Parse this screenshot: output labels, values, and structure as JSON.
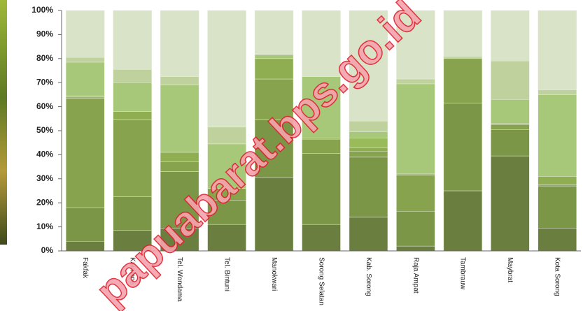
{
  "chart_data": {
    "type": "stacked_bar_100",
    "categories": [
      "Fakfak",
      "Kaimana",
      "Tel. Wondama",
      "Tel. Bintuni",
      "Manokwari",
      "Sorong Selatan",
      "Kab. Sorong",
      "Raja Ampat",
      "Tambrauw",
      "Maybrat",
      "Kota Sorong"
    ],
    "series": [
      {
        "color": "#6a7f3f",
        "values": [
          4,
          8.5,
          9.5,
          11,
          30.5,
          11,
          14,
          2,
          25,
          39.5,
          9.5
        ]
      },
      {
        "color": "#7b9647",
        "values": [
          14,
          14,
          23.5,
          10,
          24,
          29.5,
          25,
          14.5,
          36.5,
          11,
          17.5
        ]
      },
      {
        "color": "#87a34e",
        "values": [
          45.5,
          32,
          4,
          5,
          17,
          6,
          2.5,
          15,
          18.5,
          2,
          0.5
        ]
      },
      {
        "color": "#8fae52",
        "values": [
          0.5,
          3.5,
          4,
          0,
          8.5,
          0.5,
          1.5,
          0.5,
          0,
          0.5,
          3.5
        ]
      },
      {
        "color": "#99bb5a",
        "values": [
          0.5,
          0,
          0,
          0,
          0,
          0,
          4,
          0,
          0,
          0,
          0
        ]
      },
      {
        "color": "#a7c779",
        "values": [
          14,
          12,
          28,
          18.5,
          1.5,
          25.5,
          2.5,
          37.5,
          0.5,
          10,
          34
        ]
      },
      {
        "color": "#bfd29d",
        "values": [
          2,
          5.5,
          3.5,
          7,
          0.5,
          0,
          4.5,
          2,
          0.5,
          16,
          2
        ]
      },
      {
        "color": "#d8e3c8",
        "values": [
          19.5,
          24.5,
          27.5,
          48.5,
          18,
          27.5,
          46,
          28.5,
          19,
          21,
          33
        ]
      }
    ],
    "ylim": [
      0,
      100
    ],
    "yticks": [
      {
        "value": 0,
        "label": "0%"
      },
      {
        "value": 10,
        "label": "10%"
      },
      {
        "value": 20,
        "label": "20%"
      },
      {
        "value": 30,
        "label": "30%"
      },
      {
        "value": 40,
        "label": "40%"
      },
      {
        "value": 50,
        "label": "50%"
      },
      {
        "value": 60,
        "label": "60%"
      },
      {
        "value": 70,
        "label": "70%"
      },
      {
        "value": 80,
        "label": "80%"
      },
      {
        "value": 90,
        "label": "90%"
      },
      {
        "value": 100,
        "label": "100%"
      }
    ],
    "watermark": "papuabarat.bps.go.id"
  }
}
